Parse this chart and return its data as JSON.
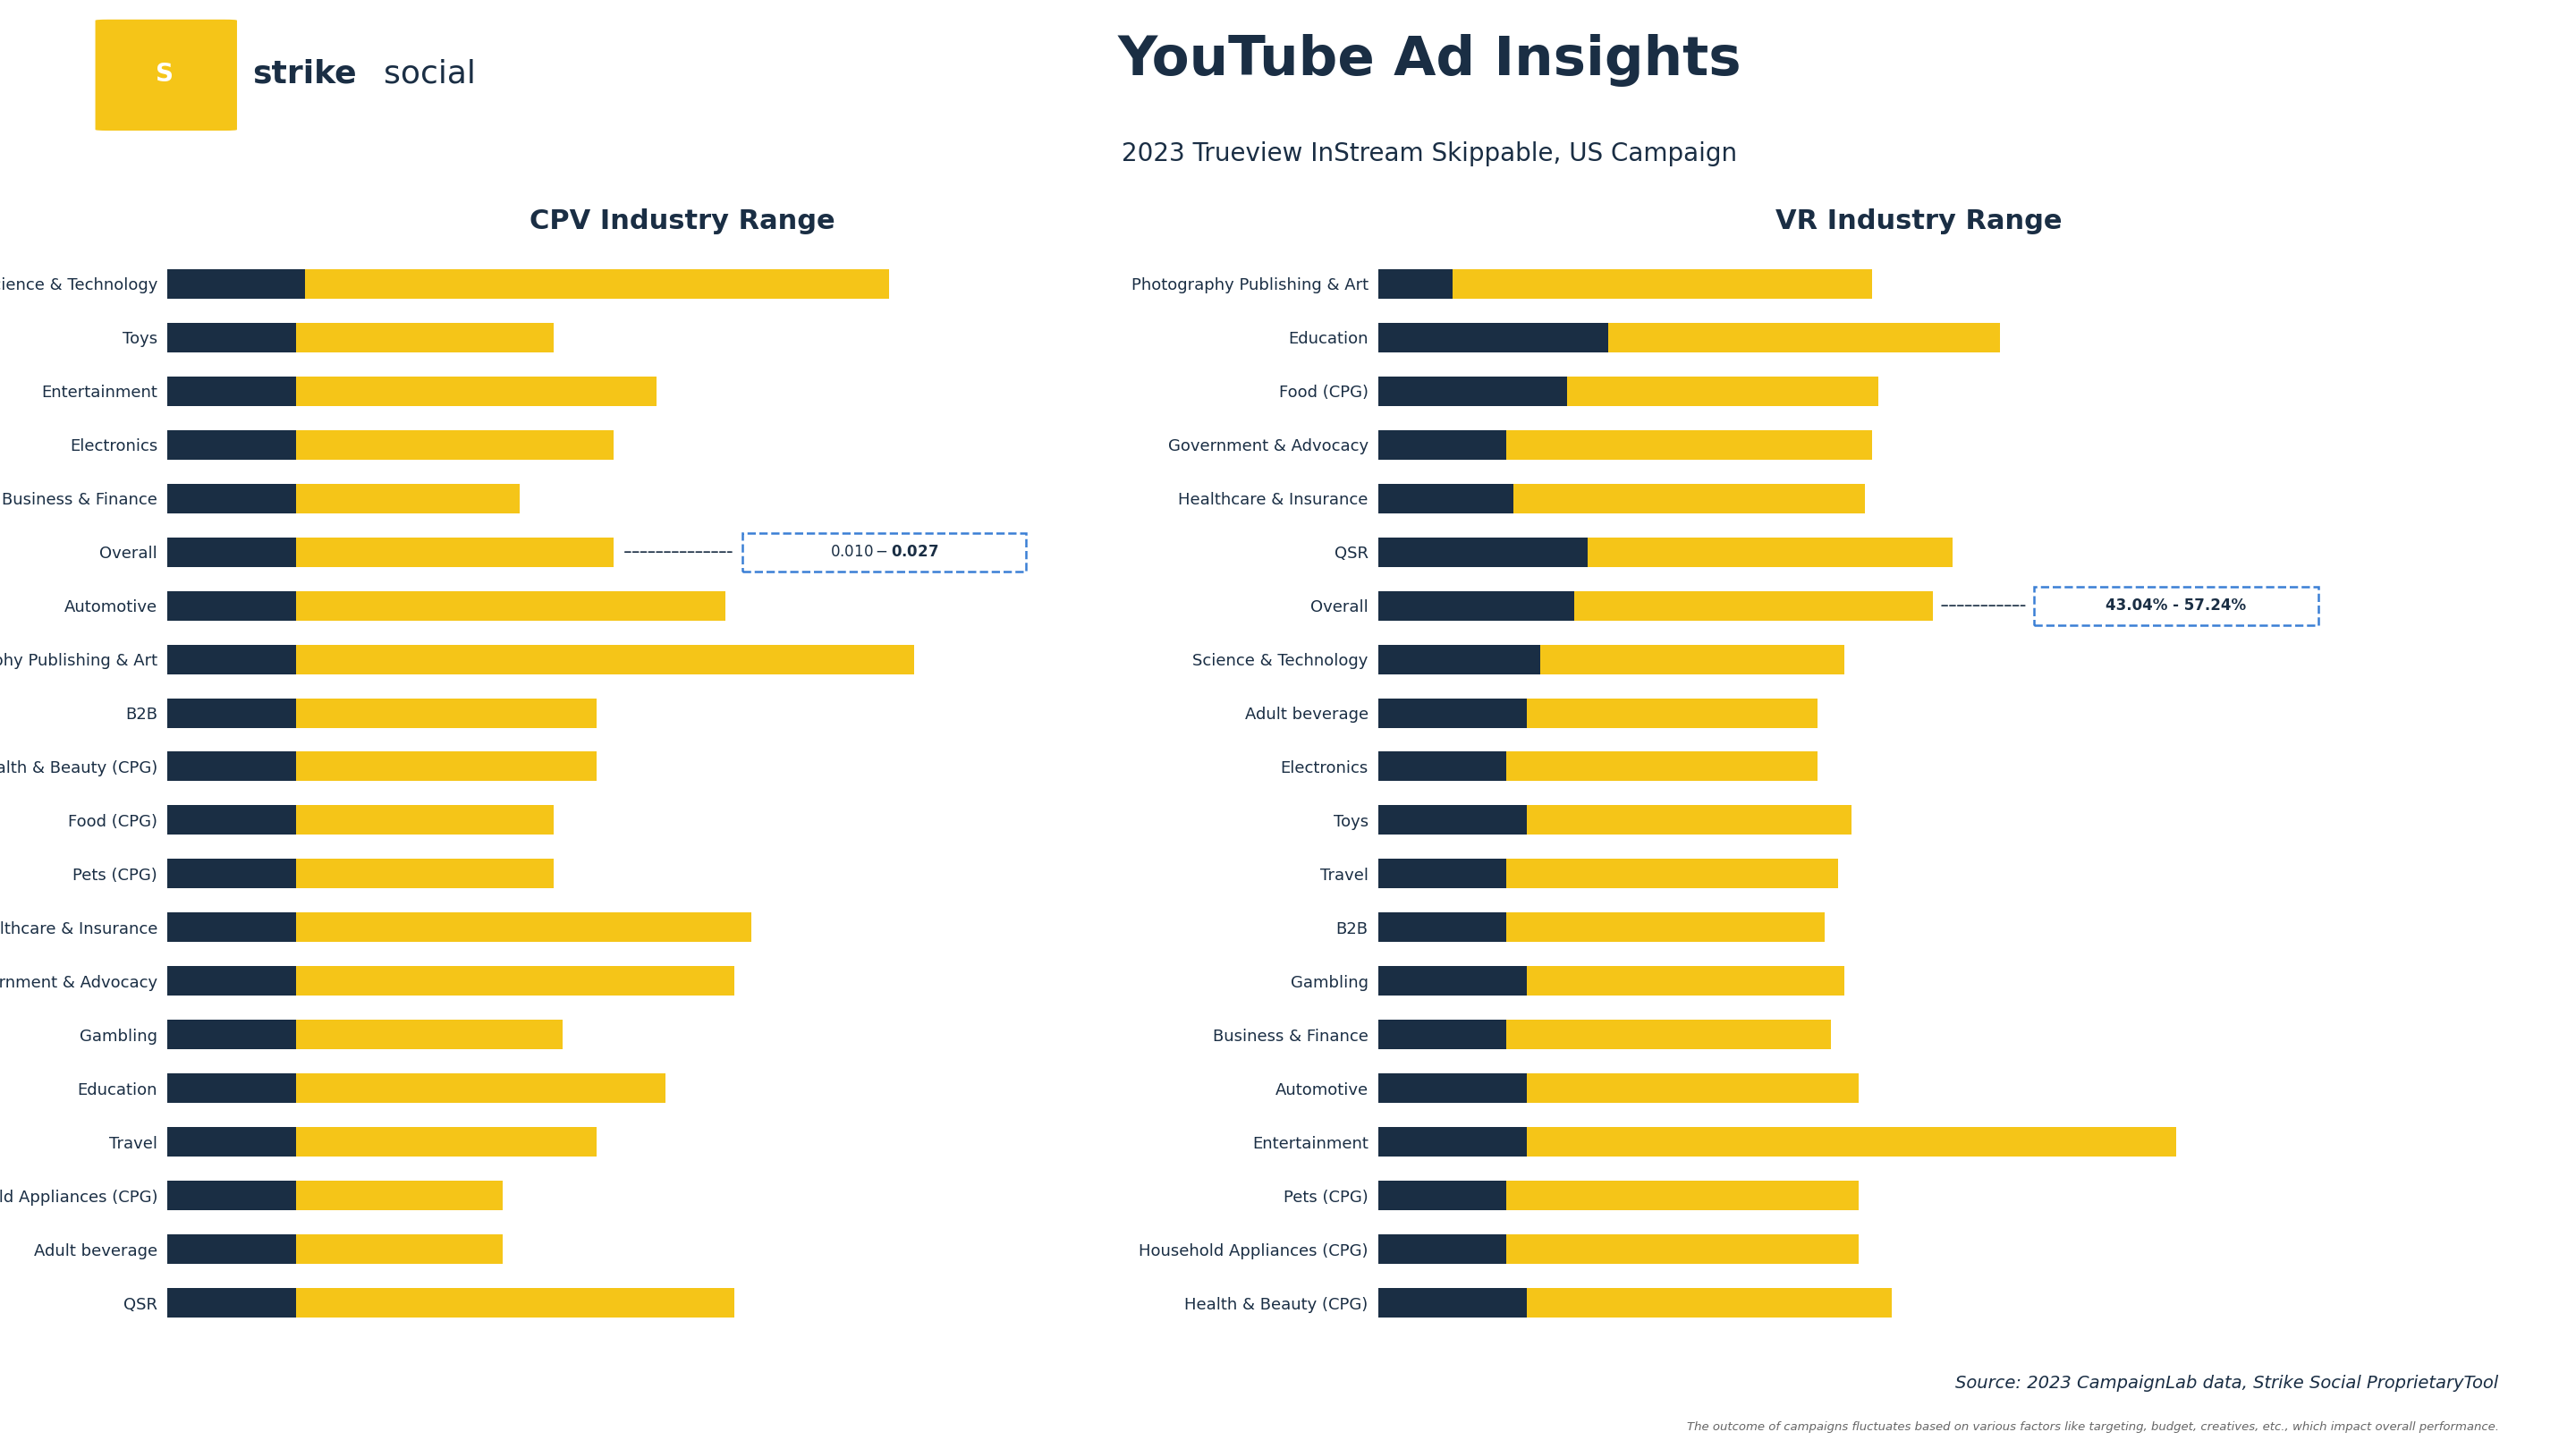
{
  "title": "YouTube Ad Insights",
  "subtitle": "2023 Trueview InStream Skippable, US Campaign",
  "cpv_title": "CPV Industry Range",
  "vr_title": "VR Industry Range",
  "dark_color": "#1a2e44",
  "yellow_color": "#f5c518",
  "bg_color": "#ffffff",
  "text_color": "#1a2e44",
  "cpv_categories": [
    "Science & Technology",
    "Toys",
    "Entertainment",
    "Electronics",
    "Business & Finance",
    "Overall",
    "Automotive",
    "Photography Publishing & Art",
    "B2B",
    "Health & Beauty (CPG)",
    "Food (CPG)",
    "Pets (CPG)",
    "Healthcare & Insurance",
    "Government & Advocacy",
    "Gambling",
    "Education",
    "Travel",
    "Household Appliances (CPG)",
    "Adult beverage",
    "QSR"
  ],
  "cpv_dark": [
    0.08,
    0.075,
    0.075,
    0.075,
    0.075,
    0.075,
    0.075,
    0.075,
    0.075,
    0.075,
    0.075,
    0.075,
    0.075,
    0.075,
    0.075,
    0.075,
    0.075,
    0.075,
    0.075,
    0.075
  ],
  "cpv_yellow": [
    0.34,
    0.15,
    0.21,
    0.185,
    0.13,
    0.185,
    0.25,
    0.36,
    0.175,
    0.175,
    0.15,
    0.15,
    0.265,
    0.255,
    0.155,
    0.215,
    0.175,
    0.12,
    0.12,
    0.255
  ],
  "cpv_overall_label": "$0.010 - $0.027",
  "cpv_overall_idx": 5,
  "vr_categories": [
    "Photography Publishing & Art",
    "Education",
    "Food (CPG)",
    "Government & Advocacy",
    "Healthcare & Insurance",
    "QSR",
    "Overall",
    "Science & Technology",
    "Adult beverage",
    "Electronics",
    "Toys",
    "Travel",
    "B2B",
    "Gambling",
    "Business & Finance",
    "Automotive",
    "Entertainment",
    "Pets (CPG)",
    "Household Appliances (CPG)",
    "Health & Beauty (CPG)"
  ],
  "vr_dark": [
    0.055,
    0.17,
    0.14,
    0.095,
    0.1,
    0.155,
    0.145,
    0.12,
    0.11,
    0.095,
    0.11,
    0.095,
    0.095,
    0.11,
    0.095,
    0.11,
    0.11,
    0.095,
    0.095,
    0.11
  ],
  "vr_yellow": [
    0.31,
    0.29,
    0.23,
    0.27,
    0.26,
    0.27,
    0.265,
    0.225,
    0.215,
    0.23,
    0.24,
    0.245,
    0.235,
    0.235,
    0.24,
    0.245,
    0.48,
    0.26,
    0.26,
    0.27
  ],
  "vr_overall_label": "43.04% - 57.24%",
  "vr_overall_idx": 6,
  "source_text": "Source: 2023 CampaignLab data, Strike Social ProprietaryTool",
  "disclaimer_text": "The outcome of campaigns fluctuates based on various factors like targeting, budget, creatives, etc., which impact overall performance."
}
